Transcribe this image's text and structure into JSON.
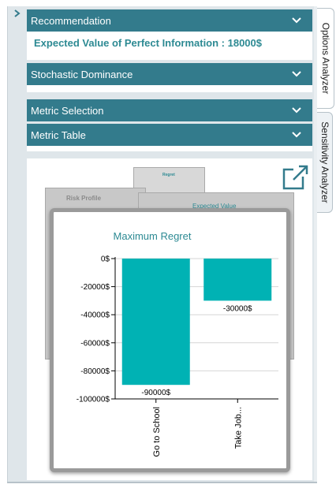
{
  "sections": {
    "recommendation": "Recommendation",
    "stochastic_dominance": "Stochastic Dominance",
    "metric_selection": "Metric Selection",
    "metric_table": "Metric Table"
  },
  "recommendation": {
    "evpi_text": "Expected Value of Perfect Information : 18000$"
  },
  "thumbnails": {
    "risk_profile": "Risk Profile",
    "expected_value": "Expected Value",
    "small_label": "Regret"
  },
  "side_tabs": {
    "options_analyzer": "Options Analyzer",
    "sensitivity_analyzer": "Sensitivity Analyzer"
  },
  "icons": {
    "expand": "expand-external-icon",
    "collapse": "chevron-right-icon",
    "section": "chevron-down-icon"
  },
  "colors": {
    "section_bar": "#337b8c",
    "accent_text": "#2d8a93",
    "bar_fill": "#00b2b4"
  },
  "chart_data": {
    "type": "bar",
    "title": "Maximum Regret",
    "categories": [
      "Go to School",
      "Take Job..."
    ],
    "values": [
      -90000,
      -30000
    ],
    "data_labels": [
      "-90000$",
      "-30000$"
    ],
    "ylim": [
      -100000,
      0
    ],
    "y_ticks": [
      0,
      -20000,
      -40000,
      -60000,
      -80000,
      -100000
    ],
    "y_tick_labels": [
      "0$",
      "-20000$",
      "-40000$",
      "-60000$",
      "-80000$",
      "-100000$"
    ],
    "xlabel": "",
    "ylabel": "",
    "grid": true,
    "legend": "none"
  }
}
